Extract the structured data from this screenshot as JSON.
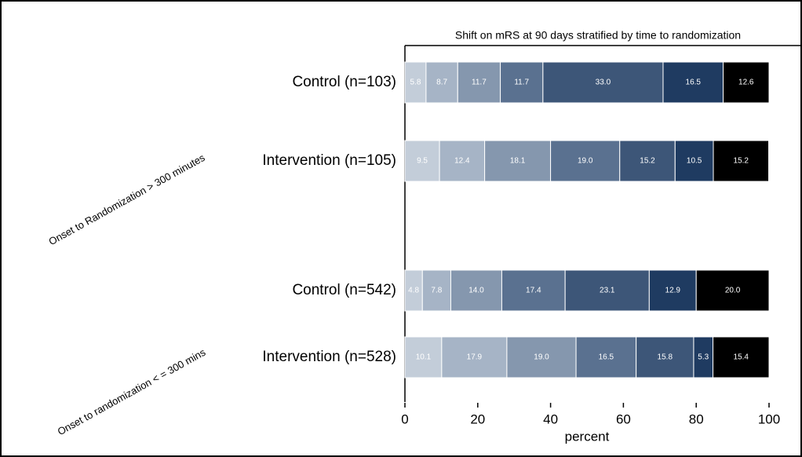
{
  "chart_data": {
    "type": "stacked-bar-horizontal",
    "title": "Shift on mRS at 90 days stratified by time to randomization",
    "xlabel": "percent",
    "group_labels": [
      "Onset to Randomization > 300 minutes",
      "Onset to randomization < = 300 mins"
    ],
    "categories": [
      "Control (n=103)",
      "Intervention (n=105)",
      "Control (n=542)",
      "Intervention (n=528)"
    ],
    "series": [
      {
        "color": "#c3cdd9",
        "values": [
          5.8,
          9.5,
          4.8,
          10.1
        ],
        "value_labels": [
          "5.8",
          "9.5",
          "4.8",
          "10.1"
        ]
      },
      {
        "color": "#a6b4c6",
        "values": [
          8.7,
          12.4,
          7.8,
          17.9
        ],
        "value_labels": [
          "8.7",
          "12.4",
          "7.8",
          "17.9"
        ]
      },
      {
        "color": "#8597ae",
        "values": [
          11.7,
          18.1,
          14.0,
          19.0
        ],
        "value_labels": [
          "11.7",
          "18.1",
          "14.0",
          "19.0"
        ]
      },
      {
        "color": "#5a7190",
        "values": [
          11.7,
          19.0,
          17.4,
          16.5
        ],
        "value_labels": [
          "11.7",
          "19.0",
          "17.4",
          "16.5"
        ]
      },
      {
        "color": "#3d5678",
        "values": [
          33.0,
          15.2,
          23.1,
          15.8
        ],
        "value_labels": [
          "33.0",
          "15.2",
          "23.1",
          "15.8"
        ]
      },
      {
        "color": "#1f3b61",
        "values": [
          16.5,
          10.5,
          12.9,
          5.3
        ],
        "value_labels": [
          "16.5",
          "10.5",
          "12.9",
          "5.3"
        ]
      },
      {
        "color": "#000000",
        "values": [
          12.6,
          15.2,
          20.0,
          15.4
        ],
        "value_labels": [
          "12.6",
          "15.2",
          "20.0",
          "15.4"
        ]
      }
    ],
    "xlim": [
      0,
      100
    ],
    "xticks": [
      0,
      20,
      40,
      60,
      80,
      100
    ]
  }
}
